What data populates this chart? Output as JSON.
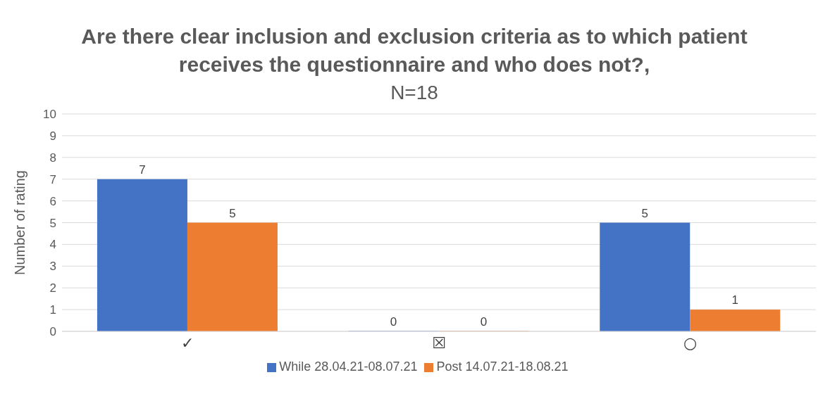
{
  "chart_data": {
    "type": "bar",
    "title": "Are there clear inclusion and exclusion criteria as to which patient receives the questionnaire and who does not?,",
    "subtitle": "N=18",
    "ylabel": "Number of rating",
    "categories": [
      "✓",
      "☒",
      "○"
    ],
    "series": [
      {
        "name": "While 28.04.21-08.07.21",
        "color": "#4472c4",
        "values": [
          7,
          0,
          5
        ]
      },
      {
        "name": "Post 14.07.21-18.08.21",
        "color": "#ed7d31",
        "values": [
          5,
          0,
          1
        ]
      }
    ],
    "ylim": [
      0,
      10
    ],
    "yticks": [
      0,
      1,
      2,
      3,
      4,
      5,
      6,
      7,
      8,
      9,
      10
    ],
    "grid": "y",
    "legend": "bottom",
    "data_labels": true
  }
}
